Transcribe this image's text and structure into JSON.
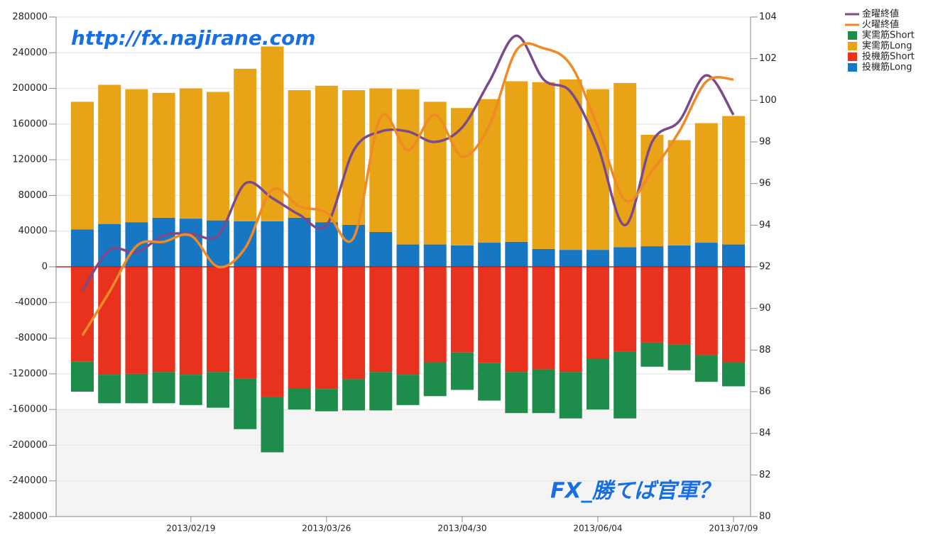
{
  "chart_data": {
    "type": "bar",
    "stacked": true,
    "grid": true,
    "legend": "top-right",
    "annotations": [
      "http://fx.najirane.com",
      "FX_勝てば官軍？"
    ],
    "categories": [
      null,
      null,
      null,
      null,
      "2013/02/19",
      null,
      null,
      null,
      null,
      "2013/03/26",
      null,
      null,
      null,
      null,
      "2013/04/30",
      null,
      null,
      null,
      null,
      "2013/06/04",
      null,
      null,
      null,
      null,
      "2013/07/09"
    ],
    "series": [
      {
        "name": "金曜終値",
        "type": "line",
        "axis": "y2",
        "color": "#7b4a8a",
        "values": [
          90.85,
          92.8,
          92.7,
          93.5,
          93.6,
          93.5,
          96.0,
          95.3,
          94.5,
          94.0,
          97.6,
          98.5,
          98.5,
          98.0,
          98.7,
          100.9,
          103.1,
          101.0,
          100.4,
          97.8,
          94.0,
          98.0,
          99.0,
          101.2,
          99.3
        ]
      },
      {
        "name": "火曜終値",
        "type": "line",
        "axis": "y2",
        "color": "#f08a24",
        "values": [
          88.7,
          90.8,
          93.0,
          93.2,
          93.5,
          92.0,
          92.9,
          95.7,
          94.9,
          94.6,
          93.4,
          99.2,
          97.6,
          99.3,
          97.3,
          98.8,
          102.4,
          102.5,
          101.7,
          98.7,
          95.2,
          96.6,
          98.5,
          100.9,
          101.0
        ]
      },
      {
        "name": "実需筋Short",
        "type": "bar",
        "color": "#1e8c4a",
        "values": [
          -34000,
          -32000,
          -33000,
          -35000,
          -34000,
          -40000,
          -57000,
          -62000,
          -24000,
          -25000,
          -35000,
          -43000,
          -34000,
          -38000,
          -42000,
          -42000,
          -46000,
          -49000,
          -52000,
          -57000,
          -75000,
          -27000,
          -29000,
          -30000,
          -27000
        ]
      },
      {
        "name": "実需筋Long",
        "type": "bar",
        "color": "#e8a317",
        "values": [
          143000,
          156000,
          149000,
          140000,
          146000,
          144000,
          171000,
          196000,
          143000,
          153000,
          151000,
          161000,
          174000,
          160000,
          154000,
          161000,
          180000,
          187000,
          191000,
          180000,
          184000,
          125000,
          118000,
          134000,
          144000
        ]
      },
      {
        "name": "投機筋Short",
        "type": "bar",
        "color": "#e8321e",
        "values": [
          -106000,
          -121000,
          -120000,
          -118000,
          -121000,
          -118000,
          -125000,
          -146000,
          -136000,
          -137000,
          -126000,
          -118000,
          -121000,
          -107000,
          -96000,
          -108000,
          -118000,
          -115000,
          -118000,
          -103000,
          -95000,
          -85000,
          -87000,
          -99000,
          -107000
        ]
      },
      {
        "name": "投機筋Long",
        "type": "bar",
        "color": "#1777c2",
        "values": [
          42000,
          48000,
          50000,
          55000,
          54000,
          52000,
          51000,
          51000,
          55000,
          50000,
          47000,
          39000,
          25000,
          25000,
          24000,
          27000,
          28000,
          20000,
          19000,
          19000,
          22000,
          23000,
          24000,
          27000,
          25000
        ]
      }
    ],
    "ylim": [
      -280000,
      280000
    ],
    "yticks": [
      -280000,
      -240000,
      -200000,
      -160000,
      -120000,
      -80000,
      -40000,
      0,
      40000,
      80000,
      120000,
      160000,
      200000,
      240000,
      280000
    ],
    "y2lim": [
      80,
      104
    ],
    "y2ticks": [
      80,
      82,
      84,
      86,
      88,
      90,
      92,
      94,
      96,
      98,
      100,
      102,
      104
    ]
  }
}
